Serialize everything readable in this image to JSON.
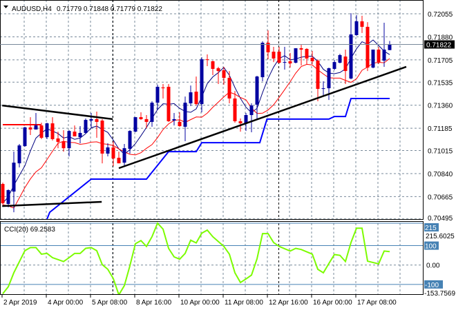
{
  "header": {
    "symbol_timeframe": "AUDUSD,H4",
    "ohlc_text": "0.71779 0.71848 0.71779 0.71822",
    "menu_icon": "triangle-down-icon"
  },
  "colors": {
    "bull": "#0000a0",
    "bear": "#ff0000",
    "fast_ma": "#000080",
    "slow_ma": "#ff0000",
    "step_line": "#0000ff",
    "trendline": "#000000",
    "cci_line": "#7cfc00",
    "cci_levels": "#4682b4",
    "grid": "#778899",
    "price_label_bg": "#000000"
  },
  "chart_data": [
    {
      "type": "candlestick",
      "symbol": "AUDUSD",
      "timeframe": "H4",
      "ylim": [
        0.70494,
        0.7216
      ],
      "grid": true,
      "y_ticks": [
        "0.72055",
        "0.71880",
        "0.71705",
        "0.71535",
        "0.71360",
        "0.71185",
        "0.71015",
        "0.70840",
        "0.70665",
        "0.70495"
      ],
      "current_price": "0.71822",
      "time_labels": [
        {
          "text": "2 Apr 2019",
          "index": 0
        },
        {
          "text": "4 Apr 00:00",
          "index": 8
        },
        {
          "text": "5 Apr 08:00",
          "index": 16
        },
        {
          "text": "8 Apr 16:00",
          "index": 24
        },
        {
          "text": "10 Apr 00:00",
          "index": 32
        },
        {
          "text": "11 Apr 08:00",
          "index": 40
        },
        {
          "text": "12 Apr 16:00",
          "index": 48
        },
        {
          "text": "16 Apr 00:00",
          "index": 56
        },
        {
          "text": "17 Apr 08:00",
          "index": 64
        }
      ],
      "period_separators": [
        20,
        50
      ],
      "candles_ohlc": [
        [
          0.70761,
          0.70771,
          0.70604,
          0.70614
        ],
        [
          0.70609,
          0.7072,
          0.70583,
          0.70714
        ],
        [
          0.70703,
          0.71007,
          0.70546,
          0.70923
        ],
        [
          0.70918,
          0.71065,
          0.70887,
          0.71054
        ],
        [
          0.71049,
          0.71196,
          0.71044,
          0.71191
        ],
        [
          0.71191,
          0.71269,
          0.71133,
          0.71175
        ],
        [
          0.71175,
          0.71301,
          0.71175,
          0.71206
        ],
        [
          0.71206,
          0.71227,
          0.71102,
          0.71112
        ],
        [
          0.71117,
          0.71227,
          0.71102,
          0.71222
        ],
        [
          0.71222,
          0.71269,
          0.71091,
          0.71102
        ],
        [
          0.71107,
          0.71159,
          0.71033,
          0.71081
        ],
        [
          0.71086,
          0.7117,
          0.71007,
          0.71033
        ],
        [
          0.71033,
          0.7117,
          0.70971,
          0.71164
        ],
        [
          0.71159,
          0.71206,
          0.71123,
          0.71123
        ],
        [
          0.71117,
          0.71201,
          0.7107,
          0.71149
        ],
        [
          0.71149,
          0.71259,
          0.71143,
          0.71248
        ],
        [
          0.71243,
          0.71301,
          0.71191,
          0.71254
        ],
        [
          0.71254,
          0.71311,
          0.71112,
          0.71233
        ],
        [
          0.71243,
          0.71254,
          0.70918,
          0.70992
        ],
        [
          0.70992,
          0.7107,
          0.70971,
          0.71039
        ],
        [
          0.71039,
          0.71086,
          0.70897,
          0.70955
        ],
        [
          0.7096,
          0.71007,
          0.70918,
          0.70918
        ],
        [
          0.70923,
          0.71065,
          0.70892,
          0.71033
        ],
        [
          0.71028,
          0.7117,
          0.70992,
          0.71164
        ],
        [
          0.71159,
          0.71269,
          0.71154,
          0.71269
        ],
        [
          0.71269,
          0.71306,
          0.71248,
          0.71254
        ],
        [
          0.71254,
          0.71285,
          0.71185,
          0.71233
        ],
        [
          0.71233,
          0.7139,
          0.71196,
          0.71379
        ],
        [
          0.71379,
          0.71516,
          0.71322,
          0.715
        ],
        [
          0.71495,
          0.71521,
          0.71411,
          0.71489
        ],
        [
          0.715,
          0.71521,
          0.71233,
          0.71238
        ],
        [
          0.71243,
          0.71301,
          0.71206,
          0.71254
        ],
        [
          0.71233,
          0.71306,
          0.71196,
          0.71201
        ],
        [
          0.71196,
          0.71426,
          0.71086,
          0.71379
        ],
        [
          0.71374,
          0.7151,
          0.71353,
          0.71458
        ],
        [
          0.71463,
          0.71578,
          0.71358,
          0.71369
        ],
        [
          0.71369,
          0.71725,
          0.71306,
          0.71709
        ],
        [
          0.71709,
          0.71746,
          0.71657,
          0.71704
        ],
        [
          0.71694,
          0.71699,
          0.71589,
          0.71636
        ],
        [
          0.71641,
          0.71652,
          0.71521,
          0.7162
        ],
        [
          0.71626,
          0.71652,
          0.71516,
          0.71568
        ],
        [
          0.71568,
          0.7162,
          0.71374,
          0.71411
        ],
        [
          0.71411,
          0.71468,
          0.71227,
          0.71238
        ],
        [
          0.71238,
          0.71259,
          0.71159,
          0.71222
        ],
        [
          0.71222,
          0.71301,
          0.71164,
          0.71285
        ],
        [
          0.71285,
          0.71374,
          0.71154,
          0.71358
        ],
        [
          0.71364,
          0.71584,
          0.71259,
          0.71578
        ],
        [
          0.71573,
          0.71846,
          0.71542,
          0.71835
        ],
        [
          0.71835,
          0.71929,
          0.71709,
          0.71762
        ],
        [
          0.71767,
          0.71804,
          0.71688,
          0.71715
        ],
        [
          0.71767,
          0.71804,
          0.71678,
          0.71683
        ],
        [
          0.71683,
          0.71804,
          0.71631,
          0.71688
        ],
        [
          0.71694,
          0.71757,
          0.71646,
          0.71678
        ],
        [
          0.71683,
          0.71793,
          0.71678,
          0.71793
        ],
        [
          0.71793,
          0.71819,
          0.71662,
          0.71783
        ],
        [
          0.71788,
          0.71793,
          0.71673,
          0.71715
        ],
        [
          0.7172,
          0.71772,
          0.71673,
          0.71694
        ],
        [
          0.71699,
          0.71709,
          0.7139,
          0.71484
        ],
        [
          0.71484,
          0.71542,
          0.71426,
          0.71489
        ],
        [
          0.71489,
          0.71646,
          0.714,
          0.71641
        ],
        [
          0.71636,
          0.71704,
          0.71626,
          0.71688
        ],
        [
          0.71683,
          0.71751,
          0.71678,
          0.71741
        ],
        [
          0.7173,
          0.71783,
          0.71521,
          0.7162
        ],
        [
          0.71563,
          0.7206,
          0.71557,
          0.71898
        ],
        [
          0.71893,
          0.72045,
          0.71888,
          0.71998
        ],
        [
          0.71998,
          0.7204,
          0.71909,
          0.71956
        ],
        [
          0.71956,
          0.71992,
          0.7162,
          0.71646
        ],
        [
          0.71646,
          0.71783,
          0.71641,
          0.71783
        ],
        [
          0.71783,
          0.71804,
          0.71673,
          0.71688
        ],
        [
          0.71699,
          0.71987,
          0.71652,
          0.71783
        ],
        [
          0.71779,
          0.71848,
          0.71779,
          0.71822
        ]
      ],
      "overlays": [
        {
          "type": "moving-average",
          "color": "#000080"
        },
        {
          "type": "moving-average",
          "color": "#ff0000"
        }
      ],
      "step_line": [
        [
          7.5,
          0.7044
        ],
        [
          8.5,
          0.70546
        ],
        [
          16,
          0.70798
        ],
        [
          26,
          0.70798
        ],
        [
          30,
          0.71007
        ],
        [
          35,
          0.71007
        ],
        [
          36,
          0.71075
        ],
        [
          46.5,
          0.71075
        ],
        [
          47.8,
          0.71254
        ],
        [
          59,
          0.71254
        ],
        [
          60,
          0.71274
        ],
        [
          62,
          0.71274
        ],
        [
          63,
          0.71411
        ],
        [
          70,
          0.71411
        ]
      ],
      "trendlines": [
        {
          "from": [
            -0.1,
            0.71358
          ],
          "to": [
            19.9,
            0.71254
          ],
          "color": "#000000"
        },
        {
          "from": [
            -0.1,
            0.70593
          ],
          "to": [
            17.9,
            0.70625
          ],
          "color": "#000000"
        },
        {
          "from": [
            21,
            0.70881
          ],
          "to": [
            73,
            0.71652
          ],
          "color": "#000000"
        }
      ],
      "horizontal_segments": [
        {
          "from": 0,
          "to": 6.9,
          "price": 0.71212,
          "color": "#ff0000"
        }
      ]
    },
    {
      "type": "line",
      "indicator": "CCI(20)",
      "label": "CCI(20) 69.2583",
      "ylim": [
        -153.7569,
        215.6025
      ],
      "max_label": "215.6025",
      "min_label": "-153.7569",
      "levels": [
        {
          "value": 215.6025,
          "label": "215"
        },
        {
          "value": 100,
          "label": "100"
        },
        {
          "value": -100,
          "label": "-100"
        }
      ],
      "zero_label": "0.00",
      "values": [
        -148,
        -112,
        -40,
        17,
        74,
        90,
        90,
        56,
        60,
        38,
        28,
        18,
        38,
        60,
        60,
        86,
        90,
        74,
        2,
        -22,
        -70,
        -153.76,
        -106,
        -4,
        110,
        126,
        96,
        146,
        215.6,
        185,
        86,
        42,
        30,
        60,
        128,
        114,
        164,
        180,
        146,
        121,
        96,
        56,
        -40,
        -90,
        -72,
        -52,
        32,
        162,
        162,
        116,
        96,
        84,
        72,
        86,
        80,
        68,
        56,
        -22,
        -40,
        8,
        54,
        50,
        18,
        116,
        190,
        190,
        20,
        13,
        6,
        72,
        69.26
      ]
    }
  ]
}
